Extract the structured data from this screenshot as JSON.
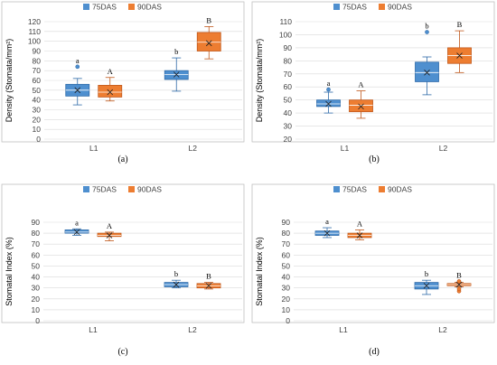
{
  "colors": {
    "s75": "#4e8fcf",
    "s90": "#ed7d31",
    "s75_edge": "#2e6aa8",
    "s90_edge": "#c0571a",
    "grid": "#d9d9d9",
    "frame": "#bfbfbf"
  },
  "chart_data": [
    {
      "type": "box",
      "panel_label": "(a)",
      "ylabel": "Density (Stomata/mm²)",
      "ylim": [
        0,
        120
      ],
      "ytick_step": 10,
      "categories": [
        "L1",
        "L2"
      ],
      "legend": [
        "75DAS",
        "90DAS"
      ],
      "series": [
        {
          "name": "75DAS",
          "groups": [
            {
              "category": "L1",
              "min": 35,
              "q1": 44,
              "median": 50,
              "q3": 56,
              "max": 62,
              "mean": 50,
              "outliers": [
                74
              ],
              "letter": "a"
            },
            {
              "category": "L2",
              "min": 49,
              "q1": 61,
              "median": 66,
              "q3": 70,
              "max": 83,
              "mean": 66,
              "outliers": [],
              "letter": "b"
            }
          ]
        },
        {
          "name": "90DAS",
          "groups": [
            {
              "category": "L1",
              "min": 39,
              "q1": 43,
              "median": 48,
              "q3": 55,
              "max": 63,
              "mean": 48,
              "outliers": [],
              "letter": "A"
            },
            {
              "category": "L2",
              "min": 82,
              "q1": 90,
              "median": 99,
              "q3": 109,
              "max": 115,
              "mean": 98,
              "outliers": [],
              "letter": "B"
            }
          ]
        }
      ]
    },
    {
      "type": "box",
      "panel_label": "(b)",
      "ylabel": "Density (Stomata/mm²)",
      "ylim": [
        20,
        110
      ],
      "ytick_step": 10,
      "categories": [
        "L1",
        "L2"
      ],
      "legend": [
        "75DAS",
        "90DAS"
      ],
      "series": [
        {
          "name": "75DAS",
          "groups": [
            {
              "category": "L1",
              "min": 40,
              "q1": 45,
              "median": 47,
              "q3": 50,
              "max": 56,
              "mean": 47,
              "outliers": [
                58
              ],
              "letter": "a"
            },
            {
              "category": "L2",
              "min": 54,
              "q1": 64,
              "median": 71,
              "q3": 79,
              "max": 83,
              "mean": 71,
              "outliers": [
                102
              ],
              "letter": "b"
            }
          ]
        },
        {
          "name": "90DAS",
          "groups": [
            {
              "category": "L1",
              "min": 36,
              "q1": 41,
              "median": 46,
              "q3": 50,
              "max": 57,
              "mean": 45,
              "outliers": [],
              "letter": "A"
            },
            {
              "category": "L2",
              "min": 71,
              "q1": 78,
              "median": 84,
              "q3": 90,
              "max": 103,
              "mean": 84,
              "outliers": [],
              "letter": "B"
            }
          ]
        }
      ]
    },
    {
      "type": "box",
      "panel_label": "(c)",
      "ylabel": "Stomatal Index (%)",
      "ylim": [
        0,
        90
      ],
      "ytick_step": 10,
      "categories": [
        "L1",
        "L2"
      ],
      "legend": [
        "75DAS",
        "90DAS"
      ],
      "series": [
        {
          "name": "75DAS",
          "groups": [
            {
              "category": "L1",
              "min": 78,
              "q1": 80,
              "median": 81,
              "q3": 83,
              "max": 84,
              "mean": 81,
              "outliers": [],
              "letter": "a"
            },
            {
              "category": "L2",
              "min": 30,
              "q1": 31,
              "median": 33,
              "q3": 35,
              "max": 37,
              "mean": 33,
              "outliers": [],
              "letter": "b"
            }
          ]
        },
        {
          "name": "90DAS",
          "groups": [
            {
              "category": "L1",
              "min": 73,
              "q1": 77,
              "median": 78,
              "q3": 80,
              "max": 81,
              "mean": 78,
              "outliers": [],
              "letter": "A"
            },
            {
              "category": "L2",
              "min": 29,
              "q1": 30,
              "median": 32,
              "q3": 34,
              "max": 35,
              "mean": 32,
              "outliers": [],
              "letter": "B"
            }
          ]
        }
      ]
    },
    {
      "type": "box",
      "panel_label": "(d)",
      "ylabel": "Stomatal Index (%)",
      "ylim": [
        0,
        90
      ],
      "ytick_step": 10,
      "categories": [
        "L1",
        "L2"
      ],
      "legend": [
        "75DAS",
        "90DAS"
      ],
      "series": [
        {
          "name": "75DAS",
          "groups": [
            {
              "category": "L1",
              "min": 76,
              "q1": 78,
              "median": 80,
              "q3": 82,
              "max": 85,
              "mean": 80,
              "outliers": [],
              "letter": "a"
            },
            {
              "category": "L2",
              "min": 24,
              "q1": 29,
              "median": 32,
              "q3": 35,
              "max": 37,
              "mean": 32,
              "outliers": [],
              "letter": "b"
            }
          ]
        },
        {
          "name": "90DAS",
          "groups": [
            {
              "category": "L1",
              "min": 74,
              "q1": 76,
              "median": 78,
              "q3": 80,
              "max": 83,
              "mean": 78,
              "outliers": [],
              "letter": "A"
            },
            {
              "category": "L2",
              "min": 31,
              "q1": 32,
              "median": 33,
              "q3": 34,
              "max": 35,
              "mean": 33,
              "outliers": [
                27,
                29,
                36
              ],
              "letter": "B"
            }
          ]
        }
      ]
    }
  ]
}
